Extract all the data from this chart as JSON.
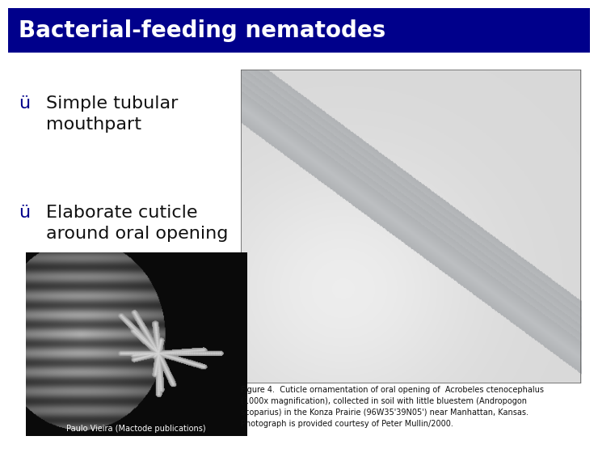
{
  "title": "Bacterial-feeding nematodes",
  "title_bg_color": "#00008B",
  "title_text_color": "#FFFFFF",
  "title_fontsize": 20,
  "bg_color": "#FFFFFF",
  "bullet_color": "#00008B",
  "bullet_points": [
    "Simple tubular\nmouthpart",
    "Elaborate cuticle\naround oral opening"
  ],
  "bullet_fontsize": 16,
  "checkmark": "ü",
  "caption_text": "Figure 4.  Cuticle ornamentation of oral opening of  Acrobeles ctenocephalus\n(1000x magnification), collected in soil with little bluestem (Andropogon\nscoparius) in the Konza Prairie (96W35'39N05') near Manhattan, Kansas.\nPhotograph is provided courtesy of Peter Mullin/2000.",
  "caption_fontsize": 7,
  "photo_credit": "Paulo Vieira (Mactode publications)",
  "photo_credit_fontsize": 7,
  "bg_color_slide": "#F0F0F0"
}
